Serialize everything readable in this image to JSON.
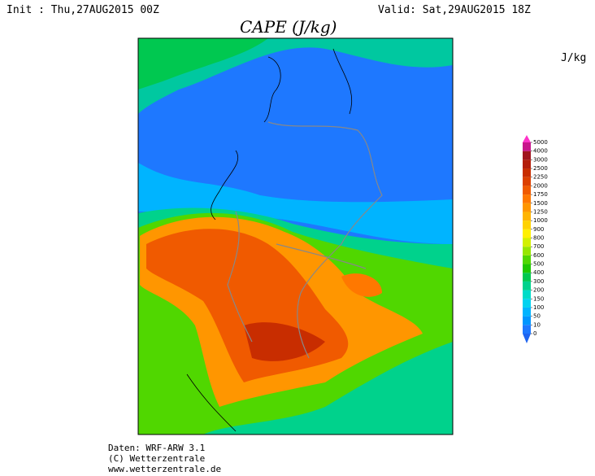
{
  "header": {
    "init": "Init : Thu,27AUG2015 00Z",
    "valid": "Valid: Sat,29AUG2015 18Z",
    "title": "CAPE (J/kg)"
  },
  "colorbar": {
    "unit": "J/kg",
    "levels": [
      0,
      10,
      50,
      100,
      150,
      200,
      300,
      400,
      500,
      600,
      700,
      800,
      900,
      1000,
      1250,
      1500,
      1750,
      2000,
      2250,
      2500,
      3000,
      4000,
      5000
    ],
    "colors": [
      "#1e78ff",
      "#0096ff",
      "#00b4ff",
      "#00d2f0",
      "#00dcc8",
      "#00d28c",
      "#00c850",
      "#1ec800",
      "#50d700",
      "#96e600",
      "#d2f000",
      "#fff000",
      "#ffd200",
      "#ffb400",
      "#ff9600",
      "#ff7800",
      "#f05a00",
      "#dc4000",
      "#c82d00",
      "#b41e0a",
      "#a0141e",
      "#c8148c"
    ],
    "under_color": "#1e64f0",
    "over_color": "#ff32c8"
  },
  "footer": {
    "lines": [
      "Daten: WRF-ARW 3.1",
      "(C) Wetterzentrale",
      "www.wetterzentrale.de"
    ]
  }
}
